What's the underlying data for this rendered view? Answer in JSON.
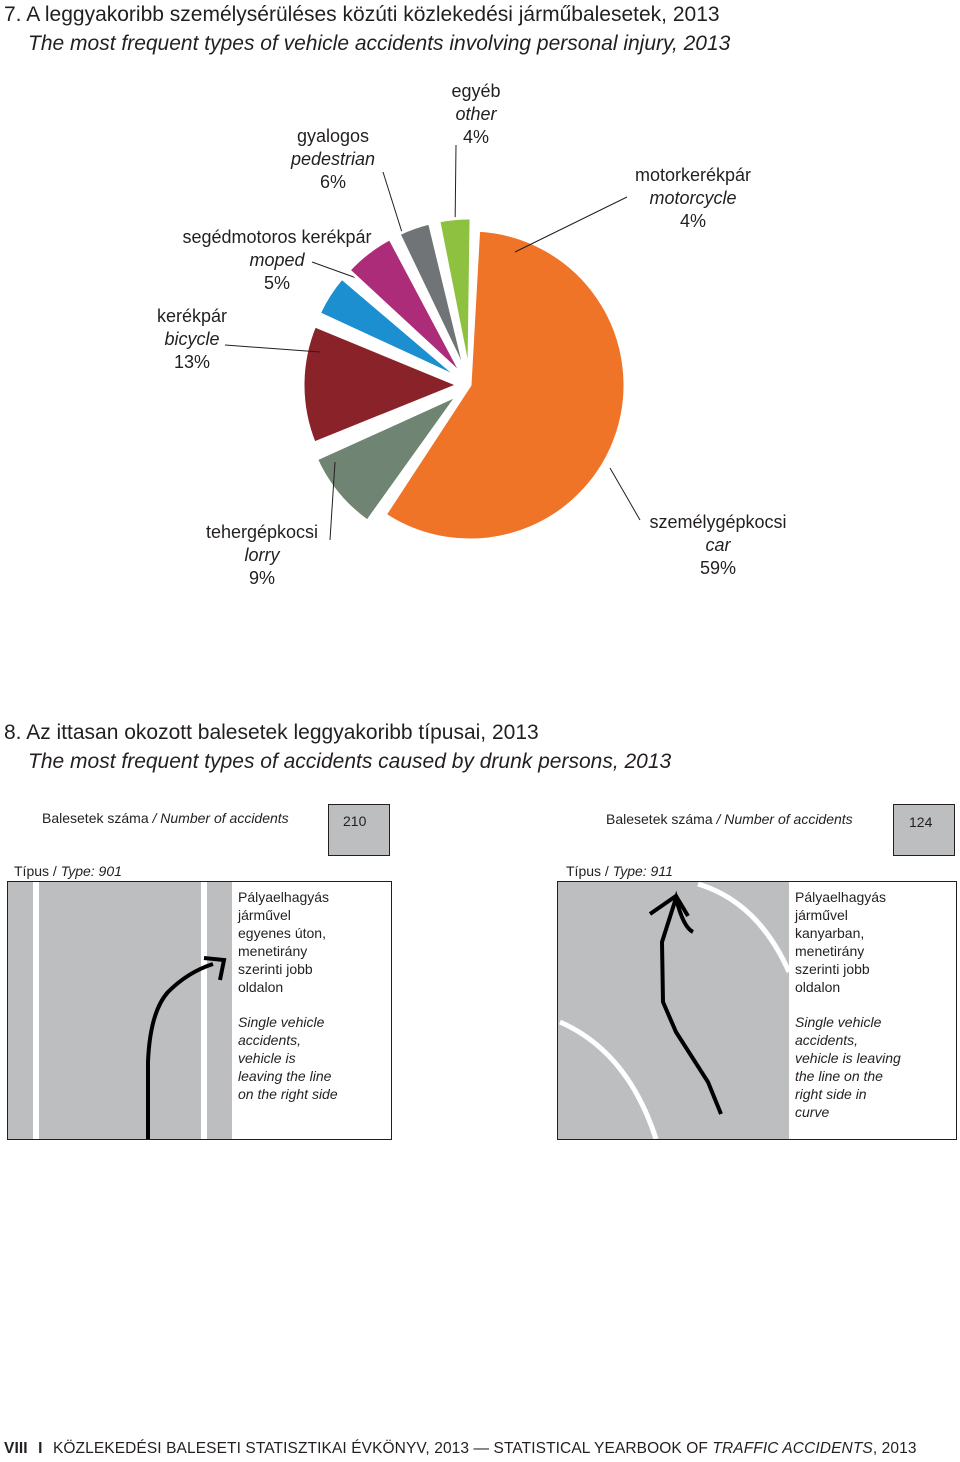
{
  "chart1": {
    "title_hu": "7. A leggyakoribb személysérüléses közúti közlekedési járműbalesetek, 2013",
    "title_en": "The most frequent types of vehicle accidents involving personal injury, 2013"
  },
  "chart_data": {
    "type": "pie",
    "title": "7. A leggyakoribb személysérüléses közúti közlekedési járműbalesetek, 2013 / The most frequent types of vehicle accidents involving personal injury, 2013",
    "slices": [
      {
        "label_hu": "személygépkocsi",
        "label_en": "car",
        "value": 59,
        "pct_label": "59%",
        "color": "#f07427"
      },
      {
        "label_hu": "tehergépkocsi",
        "label_en": "lorry",
        "value": 9,
        "pct_label": "9%",
        "color": "#6f8473"
      },
      {
        "label_hu": "kerékpár",
        "label_en": "bicycle",
        "value": 13,
        "pct_label": "13%",
        "color": "#8a2329"
      },
      {
        "label_hu": "segédmotoros kerékpár",
        "label_en": "moped",
        "value": 5,
        "pct_label": "5%",
        "color": "#1b8fd0"
      },
      {
        "label_hu": "gyalogos",
        "label_en": "pedestrian",
        "value": 6,
        "pct_label": "6%",
        "color": "#ad2c79"
      },
      {
        "label_hu": "egyéb",
        "label_en": "other",
        "value": 4,
        "pct_label": "4%",
        "color": "#707476"
      },
      {
        "label_hu": "motorkerékpár",
        "label_en": "motorcycle",
        "value": 4,
        "pct_label": "4%",
        "color": "#8ec13f"
      }
    ]
  },
  "section2": {
    "title_hu": "8. Az ittasan okozott balesetek leggyakoribb típusai, 2013",
    "title_en": "The most frequent types of accidents caused by drunk persons, 2013"
  },
  "panels": [
    {
      "count_label_hu": "Balesetek száma",
      "count_label_en": "/ Number of accidents",
      "count": "210",
      "type_label_hu": "Típus /",
      "type_label_en": "Type: 901",
      "desc_hu": "Pályaelhagyás\njárművel\negyenes úton,\nmenetirány\nszerinti jobb\noldalon",
      "desc_en": "Single vehicle\naccidents,\nvehicle is\nleaving the line\non the right side"
    },
    {
      "count_label_hu": "Balesetek száma",
      "count_label_en": "/ Number of accidents",
      "count": "124",
      "type_label_hu": "Típus /",
      "type_label_en": "Type: 911",
      "desc_hu": "Pályaelhagyás\njárművel\nkanyarban,\nmenetirány\nszerinti jobb\noldalon",
      "desc_en": "Single vehicle\naccidents,\nvehicle is leaving\nthe line on the\nright side in\ncurve"
    }
  ],
  "footer": {
    "page": "VIII",
    "sep": "I",
    "text_a": "KÖZLEKEDÉSI BALESETI STATISZTIKAI ÉVKÖNYV, 2013 — STATISTICAL YEARBOOK OF ",
    "text_b": "TRAFFIC ACCIDENTS",
    "text_c": ", 2013"
  },
  "colors": {
    "road": "#bcbec0",
    "text": "#231f20"
  }
}
